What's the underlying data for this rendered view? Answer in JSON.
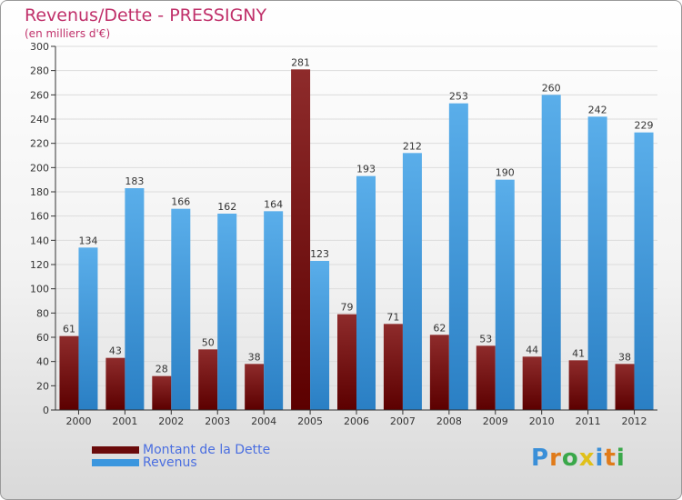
{
  "header": {
    "title": "Revenus/Dette - PRESSIGNY",
    "subtitle": "(en milliers d'€)"
  },
  "chart_data": {
    "type": "bar",
    "categories": [
      "2000",
      "2001",
      "2002",
      "2003",
      "2004",
      "2005",
      "2006",
      "2007",
      "2008",
      "2009",
      "2010",
      "2011",
      "2012"
    ],
    "series": [
      {
        "name": "Montant de la Dette",
        "color": "#7a1010",
        "values": [
          61,
          43,
          28,
          50,
          38,
          281,
          79,
          71,
          62,
          53,
          44,
          41,
          38
        ]
      },
      {
        "name": "Revenus",
        "color": "#3b96de",
        "values": [
          134,
          183,
          166,
          162,
          164,
          123,
          193,
          212,
          253,
          190,
          260,
          242,
          229
        ]
      }
    ],
    "ylim": [
      0,
      300
    ],
    "yticks": [
      0,
      20,
      40,
      60,
      80,
      100,
      120,
      140,
      160,
      180,
      200,
      220,
      240,
      260,
      280,
      300
    ],
    "grid": true
  },
  "legend": {
    "debt_label": "Montant de la Dette",
    "revenue_label": "Revenus"
  },
  "logo": {
    "letters": [
      "P",
      "r",
      "o",
      "x",
      "i",
      "t",
      "i"
    ],
    "colors": [
      "#3a8fd8",
      "#e07b1a",
      "#3aa84a",
      "#e0c01a",
      "#3a8fd8",
      "#e07b1a",
      "#3aa84a"
    ]
  }
}
